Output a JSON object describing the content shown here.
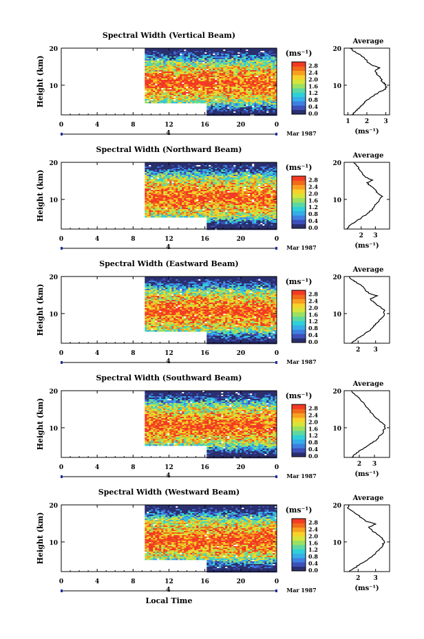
{
  "colors": {
    "scale": [
      "#2a2f6e",
      "#3d4fb8",
      "#3f7fe0",
      "#35aee8",
      "#2fd0d8",
      "#5ed8a0",
      "#9be060",
      "#d6e43a",
      "#f7d22a",
      "#f7a020",
      "#f06a1a",
      "#f23a25"
    ],
    "line": "#000000",
    "axis_marker": "#1a2aa0"
  },
  "chart_data": [
    {
      "type": "heatmap",
      "title": "Spectral Width (Vertical Beam)",
      "ylabel": "Height (km)",
      "xlabel": "",
      "x_ticks": [
        "0",
        "4",
        "8",
        "12",
        "16",
        "20",
        "0"
      ],
      "y_ticks": [
        "20",
        "10"
      ],
      "date_label": "4",
      "month_label": "Mar 1987",
      "xlim": [
        0,
        24
      ],
      "ylim": [
        2,
        20
      ],
      "data_start_hour": 9.3,
      "gap_end_hour": 16,
      "gap_height_km": 5,
      "colorbar": {
        "unit": "(ms⁻¹)",
        "ticks": [
          "2.8",
          "2.4",
          "2.0",
          "1.6",
          "1.2",
          "0.8",
          "0.4",
          "0.0"
        ],
        "range": [
          0,
          3.0
        ]
      },
      "profile": {
        "title": "Average",
        "xlabel": "(ms⁻¹)",
        "x_ticks": [
          "1",
          "2",
          "3"
        ],
        "xlim": [
          0.8,
          3.2
        ],
        "y_ticks": [
          "20",
          "10"
        ],
        "points": [
          [
            1.2,
            2
          ],
          [
            1.4,
            3
          ],
          [
            1.6,
            4
          ],
          [
            1.8,
            5
          ],
          [
            2.0,
            6
          ],
          [
            2.3,
            7
          ],
          [
            2.6,
            8
          ],
          [
            2.9,
            8.8
          ],
          [
            3.05,
            9.5
          ],
          [
            3.0,
            10.2
          ],
          [
            2.8,
            11
          ],
          [
            2.7,
            12
          ],
          [
            2.5,
            13
          ],
          [
            2.45,
            14
          ],
          [
            2.7,
            14.7
          ],
          [
            2.3,
            15.3
          ],
          [
            2.1,
            16
          ],
          [
            1.9,
            17
          ],
          [
            1.7,
            18
          ],
          [
            1.4,
            19
          ],
          [
            1.1,
            20
          ]
        ]
      }
    },
    {
      "type": "heatmap",
      "title": "Spectral Width (Northward Beam)",
      "ylabel": "Height (km)",
      "xlabel": "",
      "x_ticks": [
        "0",
        "4",
        "8",
        "12",
        "16",
        "20",
        "0"
      ],
      "y_ticks": [
        "20",
        "10"
      ],
      "date_label": "4",
      "month_label": "Mar 1987",
      "xlim": [
        0,
        24
      ],
      "ylim": [
        2,
        20
      ],
      "data_start_hour": 9.3,
      "gap_end_hour": 16,
      "gap_height_km": 5,
      "colorbar": {
        "unit": "(ms⁻¹)",
        "ticks": [
          "2.8",
          "2.4",
          "2.0",
          "1.6",
          "1.2",
          "0.8",
          "0.4",
          "0.0"
        ],
        "range": [
          0,
          3.0
        ]
      },
      "profile": {
        "title": "Average",
        "xlabel": "(ms⁻¹)",
        "x_ticks": [
          "2",
          "3"
        ],
        "xlim": [
          0.8,
          4.0
        ],
        "y_ticks": [
          "20",
          "10"
        ],
        "points": [
          [
            1.0,
            2
          ],
          [
            1.2,
            3
          ],
          [
            1.6,
            4
          ],
          [
            2.0,
            5
          ],
          [
            2.4,
            6
          ],
          [
            2.7,
            7
          ],
          [
            2.9,
            8
          ],
          [
            3.1,
            9
          ],
          [
            3.3,
            10
          ],
          [
            3.5,
            10.8
          ],
          [
            3.2,
            11.5
          ],
          [
            3.0,
            12.5
          ],
          [
            2.7,
            13.5
          ],
          [
            2.4,
            14.5
          ],
          [
            2.8,
            15.2
          ],
          [
            2.3,
            16
          ],
          [
            2.1,
            17
          ],
          [
            1.9,
            18
          ],
          [
            1.7,
            19
          ],
          [
            1.5,
            20
          ]
        ]
      }
    },
    {
      "type": "heatmap",
      "title": "Spectral Width (Eastward Beam)",
      "ylabel": "Height (km)",
      "xlabel": "",
      "x_ticks": [
        "0",
        "4",
        "8",
        "12",
        "16",
        "20",
        "0"
      ],
      "y_ticks": [
        "20",
        "10"
      ],
      "date_label": "4",
      "month_label": "Mar 1987",
      "xlim": [
        0,
        24
      ],
      "ylim": [
        2,
        20
      ],
      "data_start_hour": 9.3,
      "gap_end_hour": 16,
      "gap_height_km": 5,
      "colorbar": {
        "unit": "(ms⁻¹)",
        "ticks": [
          "2.8",
          "2.4",
          "2.0",
          "1.6",
          "1.2",
          "0.8",
          "0.4",
          "0.0"
        ],
        "range": [
          0,
          3.0
        ]
      },
      "profile": {
        "title": "Average",
        "xlabel": "",
        "x_ticks": [
          "2",
          "3"
        ],
        "xlim": [
          1.2,
          3.8
        ],
        "y_ticks": [
          "20",
          "10"
        ],
        "points": [
          [
            1.6,
            2
          ],
          [
            1.9,
            3
          ],
          [
            2.2,
            4
          ],
          [
            2.5,
            5
          ],
          [
            2.8,
            6
          ],
          [
            3.0,
            7
          ],
          [
            3.2,
            8
          ],
          [
            3.4,
            9
          ],
          [
            3.5,
            10
          ],
          [
            3.5,
            11
          ],
          [
            3.2,
            12
          ],
          [
            2.9,
            13
          ],
          [
            2.7,
            14
          ],
          [
            3.1,
            14.8
          ],
          [
            2.6,
            15.5
          ],
          [
            2.4,
            16.5
          ],
          [
            2.2,
            17.5
          ],
          [
            1.9,
            18.5
          ],
          [
            1.6,
            19.3
          ],
          [
            1.5,
            20
          ]
        ]
      }
    },
    {
      "type": "heatmap",
      "title": "Spectral Width (Southward Beam)",
      "ylabel": "Height (km)",
      "xlabel": "",
      "x_ticks": [
        "0",
        "4",
        "8",
        "12",
        "16",
        "20",
        "0"
      ],
      "y_ticks": [
        "20",
        "10"
      ],
      "date_label": "4",
      "month_label": "Mar 1987",
      "xlim": [
        0,
        24
      ],
      "ylim": [
        2,
        20
      ],
      "data_start_hour": 9.3,
      "gap_end_hour": 16,
      "gap_height_km": 5,
      "colorbar": {
        "unit": "(ms⁻¹)",
        "ticks": [
          "2.8",
          "2.4",
          "2.0",
          "1.6",
          "1.2",
          "0.8",
          "0.4",
          "0.0"
        ],
        "range": [
          0,
          3.0
        ]
      },
      "profile": {
        "title": "Average",
        "xlabel": "(ms⁻¹)",
        "x_ticks": [
          "2",
          "3"
        ],
        "xlim": [
          1.0,
          4.0
        ],
        "y_ticks": [
          "20",
          "10"
        ],
        "points": [
          [
            1.5,
            2
          ],
          [
            1.8,
            3
          ],
          [
            2.1,
            4
          ],
          [
            2.5,
            5
          ],
          [
            2.9,
            6
          ],
          [
            3.2,
            7
          ],
          [
            3.4,
            8
          ],
          [
            3.6,
            9
          ],
          [
            3.7,
            10
          ],
          [
            3.6,
            11
          ],
          [
            3.3,
            12
          ],
          [
            3.0,
            13
          ],
          [
            2.8,
            14
          ],
          [
            2.6,
            15
          ],
          [
            2.4,
            16
          ],
          [
            2.2,
            17
          ],
          [
            2.0,
            18
          ],
          [
            1.7,
            19
          ],
          [
            1.5,
            20
          ]
        ]
      }
    },
    {
      "type": "heatmap",
      "title": "Spectral Width (Westward Beam)",
      "ylabel": "Height (km)",
      "xlabel": "Local Time",
      "x_ticks": [
        "0",
        "4",
        "8",
        "12",
        "16",
        "20",
        "0"
      ],
      "y_ticks": [
        "20",
        "10"
      ],
      "date_label": "4",
      "month_label": "Mar 1987",
      "xlim": [
        0,
        24
      ],
      "ylim": [
        2,
        20
      ],
      "data_start_hour": 9.3,
      "gap_end_hour": 16,
      "gap_height_km": 5,
      "colorbar": {
        "unit": "(ms⁻¹)",
        "ticks": [
          "2.8",
          "2.4",
          "2.0",
          "1.6",
          "1.2",
          "0.8",
          "0.4",
          "0.0"
        ],
        "range": [
          0,
          3.0
        ]
      },
      "profile": {
        "title": "Average",
        "xlabel": "(ms⁻¹)",
        "x_ticks": [
          "2",
          "3"
        ],
        "xlim": [
          1.2,
          3.8
        ],
        "y_ticks": [
          "20",
          "10"
        ],
        "points": [
          [
            1.5,
            2
          ],
          [
            1.8,
            3
          ],
          [
            2.1,
            4
          ],
          [
            2.5,
            5
          ],
          [
            2.8,
            6
          ],
          [
            3.0,
            7
          ],
          [
            3.2,
            8
          ],
          [
            3.4,
            9
          ],
          [
            3.5,
            10
          ],
          [
            3.4,
            11
          ],
          [
            3.1,
            12
          ],
          [
            2.8,
            13
          ],
          [
            2.6,
            14
          ],
          [
            3.0,
            14.8
          ],
          [
            2.5,
            15.5
          ],
          [
            2.2,
            16.5
          ],
          [
            1.9,
            17.5
          ],
          [
            1.6,
            18.5
          ],
          [
            1.4,
            19.3
          ],
          [
            1.5,
            20
          ]
        ]
      }
    }
  ]
}
